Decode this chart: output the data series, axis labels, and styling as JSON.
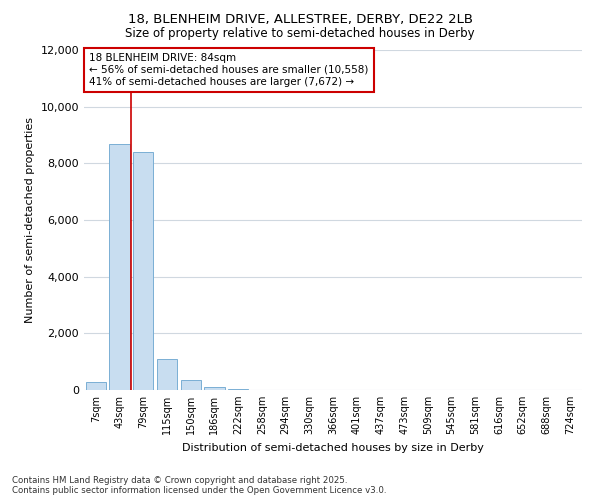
{
  "title1": "18, BLENHEIM DRIVE, ALLESTREE, DERBY, DE22 2LB",
  "title2": "Size of property relative to semi-detached houses in Derby",
  "xlabel": "Distribution of semi-detached houses by size in Derby",
  "ylabel": "Number of semi-detached properties",
  "categories": [
    "7sqm",
    "43sqm",
    "79sqm",
    "115sqm",
    "150sqm",
    "186sqm",
    "222sqm",
    "258sqm",
    "294sqm",
    "330sqm",
    "366sqm",
    "401sqm",
    "437sqm",
    "473sqm",
    "509sqm",
    "545sqm",
    "581sqm",
    "616sqm",
    "652sqm",
    "688sqm",
    "724sqm"
  ],
  "values": [
    300,
    8700,
    8400,
    1100,
    350,
    100,
    50,
    8,
    3,
    1,
    0,
    0,
    0,
    0,
    0,
    0,
    0,
    0,
    0,
    0,
    0
  ],
  "bar_color": "#c8ddf0",
  "bar_edge_color": "#7aafd4",
  "red_line_x": 2.0,
  "red_line_color": "#cc0000",
  "annotation_text_line1": "18 BLENHEIM DRIVE: 84sqm",
  "annotation_text_line2": "← 56% of semi-detached houses are smaller (10,558)",
  "annotation_text_line3": "41% of semi-detached houses are larger (7,672) →",
  "annotation_box_color": "#ffffff",
  "annotation_box_edge": "#cc0000",
  "ylim": [
    0,
    12000
  ],
  "yticks": [
    0,
    2000,
    4000,
    6000,
    8000,
    10000,
    12000
  ],
  "footnote": "Contains HM Land Registry data © Crown copyright and database right 2025.\nContains public sector information licensed under the Open Government Licence v3.0.",
  "bg_color": "#ffffff",
  "plot_bg_color": "#ffffff",
  "grid_color": "#d0d8e0"
}
